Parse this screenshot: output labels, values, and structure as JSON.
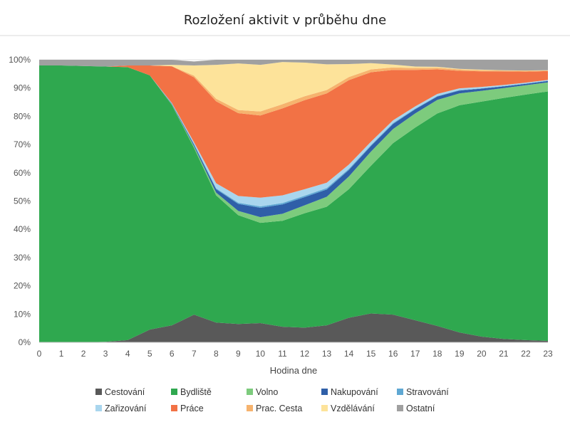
{
  "chart_data": {
    "type": "area",
    "stacked": true,
    "normalized": true,
    "title": "Rozložení aktivit v průběhu dne",
    "xlabel": "Hodina dne",
    "ylabel": "",
    "x": [
      0,
      1,
      2,
      3,
      4,
      5,
      6,
      7,
      8,
      9,
      10,
      11,
      12,
      13,
      14,
      15,
      16,
      17,
      18,
      19,
      20,
      21,
      22,
      23
    ],
    "ylim": [
      0,
      100
    ],
    "yticks": [
      "0%",
      "10%",
      "20%",
      "30%",
      "40%",
      "50%",
      "60%",
      "70%",
      "80%",
      "90%",
      "100%"
    ],
    "grid": true,
    "legend_position": "bottom",
    "series": [
      {
        "name": "Cestování",
        "color": "#595959",
        "values": [
          0,
          0,
          0,
          0.2,
          0.8,
          4.5,
          6,
          9.8,
          7,
          6.5,
          6.8,
          5.5,
          5.2,
          6,
          8.7,
          10.2,
          9.8,
          7.8,
          5.8,
          3.5,
          2,
          1.2,
          0.8,
          0.5
        ]
      },
      {
        "name": "Bydliště",
        "color": "#2fa84f",
        "values": [
          98,
          98,
          97.8,
          97.4,
          96.6,
          90,
          78,
          59,
          45,
          38.5,
          35.5,
          37.5,
          40.5,
          42,
          45.5,
          52.3,
          60.7,
          68.2,
          75.2,
          80.4,
          83.2,
          85.3,
          86.9,
          88.3
        ]
      },
      {
        "name": "Volno",
        "color": "#7dcb7d",
        "values": [
          0,
          0,
          0,
          0,
          0,
          0,
          0.2,
          0.6,
          1,
          1.5,
          2,
          2.5,
          2.8,
          3.5,
          4.5,
          5,
          5,
          5,
          4.8,
          4.2,
          3.8,
          3.5,
          3.3,
          3.2
        ]
      },
      {
        "name": "Nakupování",
        "color": "#2f5fa8",
        "values": [
          0,
          0,
          0,
          0,
          0,
          0,
          0.2,
          0.6,
          1.2,
          2.5,
          3.3,
          3.3,
          2.9,
          2.6,
          2.3,
          2,
          1.8,
          1.5,
          1.2,
          1,
          0.8,
          0.6,
          0.5,
          0.5
        ]
      },
      {
        "name": "Stravování",
        "color": "#5fa8d3",
        "values": [
          0,
          0,
          0,
          0,
          0,
          0,
          0.1,
          0.2,
          0.3,
          0.4,
          0.5,
          0.5,
          0.5,
          0.5,
          0.4,
          0.3,
          0.3,
          0.2,
          0.2,
          0.2,
          0.1,
          0.1,
          0.1,
          0.1
        ]
      },
      {
        "name": "Zařizování",
        "color": "#a9d6ee",
        "values": [
          0,
          0,
          0,
          0,
          0,
          0,
          0.2,
          0.6,
          1.8,
          2.4,
          3.1,
          2.7,
          2.3,
          1.9,
          1.5,
          1.2,
          1,
          0.8,
          0.7,
          0.6,
          0.5,
          0.4,
          0.3,
          0.3
        ]
      },
      {
        "name": "Práce",
        "color": "#f27245",
        "values": [
          0,
          0,
          0,
          0,
          0.6,
          3.5,
          13,
          23,
          29,
          29.3,
          29.1,
          30.8,
          31.5,
          31.6,
          29.9,
          24.6,
          17.8,
          12.9,
          8.7,
          6.2,
          5.5,
          4.8,
          3.9,
          3.1
        ]
      },
      {
        "name": "Prac. Cesta",
        "color": "#f6b36e",
        "values": [
          0,
          0,
          0,
          0,
          0,
          0,
          0,
          0.6,
          0.9,
          1.1,
          1.4,
          1.5,
          1.4,
          1.2,
          1.1,
          1,
          0.9,
          0.7,
          0.6,
          0.5,
          0.4,
          0.3,
          0.3,
          0.2
        ]
      },
      {
        "name": "Vzdělávání",
        "color": "#fde39a",
        "values": [
          0,
          0,
          0,
          0,
          0,
          0,
          0.5,
          3.6,
          12,
          16.5,
          16.5,
          14.9,
          11.9,
          9.1,
          4.6,
          2.2,
          1,
          0.5,
          0.3,
          0.2,
          0.2,
          0.1,
          0.1,
          0.1
        ]
      },
      {
        "name": "Ostatní",
        "color": "#a0a0a0",
        "values": [
          2,
          2,
          2.2,
          2.4,
          2,
          2,
          1.8,
          1.4,
          1.8,
          1.3,
          1.8,
          0.8,
          1,
          1.6,
          1.5,
          1.2,
          1.7,
          2.4,
          2.5,
          3.2,
          3.5,
          3.7,
          3.8,
          3.7
        ]
      }
    ]
  }
}
